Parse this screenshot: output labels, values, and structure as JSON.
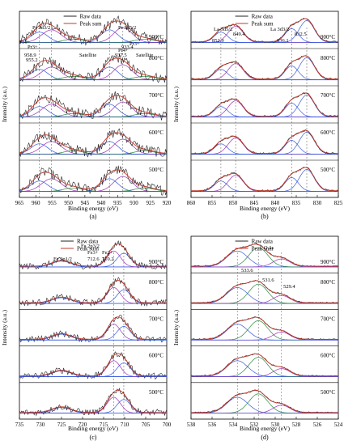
{
  "chart_data": [
    {
      "type": "line",
      "panel_label": "(a)",
      "xlabel": "Binding energy (eV)",
      "ylabel": "Intensity (a.u.)",
      "xlim": [
        965,
        920
      ],
      "xticks": [
        965,
        960,
        955,
        950,
        945,
        940,
        935,
        930,
        925,
        920
      ],
      "legend": [
        "Raw data",
        "Peak sum"
      ],
      "series_colors": {
        "raw": "#222222",
        "sum": "#c0392b",
        "fit1": "#3b5bdb",
        "fit2": "#9c36b5",
        "fit3": "#2b8a3e"
      },
      "temperatures": [
        "900°C",
        "800°C",
        "700°C",
        "600°C",
        "500°C"
      ],
      "annotations": [
        "Pr 3d3/2",
        "Pr 3d5/2",
        "Pr4+",
        "Pr3+",
        "958.9",
        "955.2",
        "937.5",
        "933.4",
        "Pr4+",
        "Pr3+",
        "Satellite",
        "Satellite"
      ],
      "peak_markers": [
        958.9,
        955.2,
        937.5,
        933.4
      ],
      "peaks": [
        {
          "center": 958.9,
          "amp": 0.45,
          "width": 2.6
        },
        {
          "center": 955.2,
          "amp": 0.55,
          "width": 3.0
        },
        {
          "center": 948.5,
          "amp": 0.15,
          "width": 3.0
        },
        {
          "center": 937.5,
          "amp": 0.55,
          "width": 2.6
        },
        {
          "center": 933.4,
          "amp": 0.65,
          "width": 2.8
        },
        {
          "center": 926.8,
          "amp": 0.15,
          "width": 3.0
        }
      ],
      "noise": 0.22
    },
    {
      "type": "line",
      "panel_label": "(b)",
      "xlabel": "Binding energy (eV)",
      "ylabel": "Intensity (a.u.)",
      "xlim": [
        860,
        825
      ],
      "xticks": [
        860,
        855,
        850,
        845,
        840,
        835,
        830,
        825
      ],
      "legend": [
        "Raw data",
        "Peak sum"
      ],
      "series_colors": {
        "raw": "#222222",
        "sum": "#c0392b",
        "fit1": "#3b5bdb",
        "fit2": "#9c36b5"
      },
      "temperatures": [
        "900°C",
        "800°C",
        "700°C",
        "600°C",
        "500°C"
      ],
      "annotations": [
        "La 3d5/2",
        "La 3d3/2",
        "852.9",
        "849.4",
        "836.1",
        "832.5"
      ],
      "peak_markers": [
        852.9,
        849.4,
        836.1,
        832.5
      ],
      "peaks": [
        {
          "center": 852.9,
          "amp": 0.45,
          "width": 1.6
        },
        {
          "center": 849.4,
          "amp": 0.7,
          "width": 1.8
        },
        {
          "center": 836.1,
          "amp": 0.6,
          "width": 1.6
        },
        {
          "center": 832.5,
          "amp": 0.95,
          "width": 1.8
        }
      ],
      "noise": 0.04
    },
    {
      "type": "line",
      "panel_label": "(c)",
      "xlabel": "Binding energy (eV)",
      "ylabel": "Intensity (a.u.)",
      "xlim": [
        735,
        700
      ],
      "xticks": [
        735,
        730,
        725,
        720,
        715,
        710,
        705,
        700
      ],
      "legend": [
        "Raw data",
        "Peak sum"
      ],
      "series_colors": {
        "raw": "#222222",
        "sum": "#c0392b",
        "fit1": "#3b5bdb",
        "fit2": "#9c36b5"
      },
      "temperatures": [
        "900°C",
        "800°C",
        "700°C",
        "600°C",
        "500°C"
      ],
      "annotations": [
        "Fe 2p1/2",
        "Fe 2p3/2",
        "Fe3+",
        "Fe2+",
        "712.6",
        "710.2"
      ],
      "peak_markers": [
        712.6,
        710.2
      ],
      "peaks": [
        {
          "center": 725.0,
          "amp": 0.25,
          "width": 2.2
        },
        {
          "center": 712.6,
          "amp": 0.7,
          "width": 1.6
        },
        {
          "center": 710.2,
          "amp": 0.6,
          "width": 1.6
        }
      ],
      "noise": 0.14
    },
    {
      "type": "line",
      "panel_label": "(d)",
      "xlabel": "Binding energy (eV)",
      "ylabel": "Intensity (a.u.)",
      "xlim": [
        538,
        524
      ],
      "xticks": [
        538,
        536,
        534,
        532,
        530,
        528,
        526,
        524
      ],
      "legend": [
        "Raw data",
        "Peak sum"
      ],
      "series_colors": {
        "raw": "#222222",
        "sum": "#c0392b",
        "fit1": "#3b5bdb",
        "fit2": "#2b8a3e",
        "fit3": "#9c36b5"
      },
      "temperatures": [
        "900°C",
        "800°C",
        "700°C",
        "600°C",
        "500°C"
      ],
      "annotations": [
        "O 1s",
        "533.6",
        "531.6",
        "529.4"
      ],
      "peak_markers": [
        533.6,
        531.6,
        529.4
      ],
      "peaks": [
        {
          "center": 533.6,
          "amp": 0.7,
          "width": 1.0
        },
        {
          "center": 531.6,
          "amp": 0.85,
          "width": 0.9
        },
        {
          "center": 529.4,
          "amp": 0.35,
          "width": 0.8
        }
      ],
      "noise": 0.03
    }
  ]
}
